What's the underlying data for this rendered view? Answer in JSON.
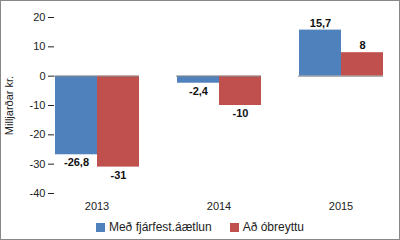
{
  "chart_data": {
    "type": "bar",
    "categories": [
      "2013",
      "2014",
      "2015"
    ],
    "series": [
      {
        "name": "Með fjárfest.áætlun",
        "color": "#4f81bd",
        "values": [
          -26.8,
          -2.4,
          15.7
        ],
        "value_labels": [
          "-26,8",
          "-2,4",
          "15,7"
        ]
      },
      {
        "name": "Að óbreyttu",
        "color": "#c0504d",
        "values": [
          -31,
          -10,
          8
        ],
        "value_labels": [
          "-31",
          "-10",
          "8"
        ]
      }
    ],
    "y_label": "Milljarðar kr.",
    "ylim": [
      -40,
      20
    ],
    "yticks": [
      -40,
      -30,
      -20,
      -10,
      0,
      10,
      20
    ],
    "grid": false,
    "legend": "bottom",
    "data_labels": true
  }
}
